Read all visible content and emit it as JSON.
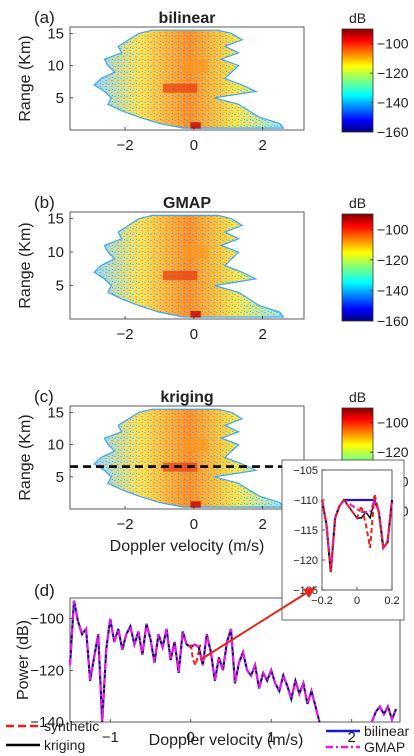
{
  "chart_data": [
    {
      "type": "heatmap",
      "panel": "(a)",
      "title": "bilinear",
      "ylabel": "Range (Km)",
      "xlabel": "",
      "xlim": [
        -3.6,
        3.2
      ],
      "ylim": [
        0,
        16
      ],
      "xticks": [
        -2,
        0,
        2
      ],
      "yticks": [
        5,
        10,
        15
      ],
      "colorbar": {
        "label": "dB",
        "range": [
          -160,
          -90
        ],
        "ticks": [
          -100,
          -120,
          -140,
          -160
        ]
      },
      "profile": [
        {
          "r": 0.3,
          "lo": -0.3,
          "hi": 2.6
        },
        {
          "r": 1,
          "lo": -1.0,
          "hi": 2.5
        },
        {
          "r": 2,
          "lo": -1.6,
          "hi": 1.9
        },
        {
          "r": 3,
          "lo": -2.1,
          "hi": 1.6
        },
        {
          "r": 4,
          "lo": -2.5,
          "hi": 1.3
        },
        {
          "r": 5,
          "lo": -2.4,
          "hi": 0.6
        },
        {
          "r": 6,
          "lo": -2.6,
          "hi": 1.8
        },
        {
          "r": 7,
          "lo": -2.9,
          "hi": 1.4
        },
        {
          "r": 8,
          "lo": -2.7,
          "hi": 0.9
        },
        {
          "r": 9,
          "lo": -2.3,
          "hi": 1.1
        },
        {
          "r": 10,
          "lo": -2.5,
          "hi": 1.3
        },
        {
          "r": 11,
          "lo": -2.6,
          "hi": 0.8
        },
        {
          "r": 12,
          "lo": -2.1,
          "hi": 1.3
        },
        {
          "r": 13,
          "lo": -2.2,
          "hi": 0.9
        },
        {
          "r": 14,
          "lo": -1.9,
          "hi": 1.4
        },
        {
          "r": 15,
          "lo": -1.6,
          "hi": 1.1
        },
        {
          "r": 15.5,
          "lo": -1.2,
          "hi": 0.7
        }
      ]
    },
    {
      "type": "heatmap",
      "panel": "(b)",
      "title": "GMAP",
      "ylabel": "Range (Km)",
      "xlabel": "",
      "xlim": [
        -3.6,
        3.2
      ],
      "ylim": [
        0,
        16
      ],
      "xticks": [
        -2,
        0,
        2
      ],
      "yticks": [
        5,
        10,
        15
      ],
      "colorbar": {
        "label": "dB",
        "range": [
          -160,
          -90
        ],
        "ticks": [
          -100,
          -120,
          -140,
          -160
        ]
      },
      "profile": [
        {
          "r": 0.3,
          "lo": -0.3,
          "hi": 2.6
        },
        {
          "r": 1,
          "lo": -1.0,
          "hi": 2.5
        },
        {
          "r": 2,
          "lo": -1.6,
          "hi": 1.9
        },
        {
          "r": 3,
          "lo": -2.1,
          "hi": 1.6
        },
        {
          "r": 4,
          "lo": -2.5,
          "hi": 1.3
        },
        {
          "r": 5,
          "lo": -2.4,
          "hi": 0.6
        },
        {
          "r": 6,
          "lo": -2.6,
          "hi": 1.8
        },
        {
          "r": 7,
          "lo": -2.9,
          "hi": 1.4
        },
        {
          "r": 8,
          "lo": -2.7,
          "hi": 0.9
        },
        {
          "r": 9,
          "lo": -2.3,
          "hi": 1.1
        },
        {
          "r": 10,
          "lo": -2.5,
          "hi": 1.3
        },
        {
          "r": 11,
          "lo": -2.6,
          "hi": 0.8
        },
        {
          "r": 12,
          "lo": -2.1,
          "hi": 1.3
        },
        {
          "r": 13,
          "lo": -2.2,
          "hi": 0.9
        },
        {
          "r": 14,
          "lo": -1.9,
          "hi": 1.4
        },
        {
          "r": 15,
          "lo": -1.6,
          "hi": 1.1
        },
        {
          "r": 15.5,
          "lo": -1.2,
          "hi": 0.7
        }
      ]
    },
    {
      "type": "heatmap",
      "panel": "(c)",
      "title": "kriging",
      "ylabel": "Range (Km)",
      "xlabel": "Doppler velocity (m/s)",
      "xlim": [
        -3.6,
        3.2
      ],
      "ylim": [
        0,
        16
      ],
      "xticks": [
        -2,
        0,
        2
      ],
      "yticks": [
        5,
        10,
        15
      ],
      "colorbar": {
        "label": "dB",
        "range": [
          -160,
          -90
        ],
        "ticks": [
          -100,
          -120,
          -140,
          -160
        ]
      },
      "cut_line_range_km": 6.6,
      "profile": [
        {
          "r": 0.3,
          "lo": -0.3,
          "hi": 2.6
        },
        {
          "r": 1,
          "lo": -1.0,
          "hi": 2.5
        },
        {
          "r": 2,
          "lo": -1.6,
          "hi": 1.9
        },
        {
          "r": 3,
          "lo": -2.1,
          "hi": 1.6
        },
        {
          "r": 4,
          "lo": -2.5,
          "hi": 1.3
        },
        {
          "r": 5,
          "lo": -2.4,
          "hi": 0.6
        },
        {
          "r": 6,
          "lo": -2.6,
          "hi": 1.8
        },
        {
          "r": 7,
          "lo": -2.9,
          "hi": 1.4
        },
        {
          "r": 8,
          "lo": -2.7,
          "hi": 0.9
        },
        {
          "r": 9,
          "lo": -2.3,
          "hi": 1.1
        },
        {
          "r": 10,
          "lo": -2.5,
          "hi": 1.3
        },
        {
          "r": 11,
          "lo": -2.6,
          "hi": 0.8
        },
        {
          "r": 12,
          "lo": -2.1,
          "hi": 1.3
        },
        {
          "r": 13,
          "lo": -2.2,
          "hi": 0.9
        },
        {
          "r": 14,
          "lo": -1.9,
          "hi": 1.4
        },
        {
          "r": 15,
          "lo": -1.6,
          "hi": 1.1
        },
        {
          "r": 15.5,
          "lo": -1.2,
          "hi": 0.7
        }
      ]
    },
    {
      "type": "line",
      "panel": "(d)",
      "title": "",
      "xlabel": "Doppler velocity (m/s)",
      "ylabel": "Power (dB)",
      "xlim": [
        -1.5,
        2.6
      ],
      "ylim": [
        -140,
        -92
      ],
      "xticks": [
        -1,
        0,
        1,
        2
      ],
      "yticks": [
        -100,
        -120,
        -140
      ],
      "legend": [
        {
          "name": "synthetic",
          "color": "#e8211b",
          "style": "dashed"
        },
        {
          "name": "kriging",
          "color": "#000000",
          "style": "solid"
        },
        {
          "name": "bilinear",
          "color": "#1c16d6",
          "style": "solid"
        },
        {
          "name": "GMAP",
          "color": "#e619e6",
          "style": "dashdot"
        }
      ],
      "series": [
        {
          "x": [
            -1.5,
            -1.45,
            -1.4,
            -1.35,
            -1.3,
            -1.25,
            -1.2,
            -1.15,
            -1.1,
            -1.05,
            -1.0,
            -0.95,
            -0.9,
            -0.85,
            -0.8,
            -0.75,
            -0.7,
            -0.65,
            -0.6,
            -0.55,
            -0.5,
            -0.45,
            -0.4,
            -0.35,
            -0.3,
            -0.25,
            -0.2,
            -0.15,
            -0.1,
            -0.05,
            0.0,
            0.05,
            0.1,
            0.15,
            0.2,
            0.25,
            0.3,
            0.35,
            0.4,
            0.45,
            0.5,
            0.55,
            0.6,
            0.65,
            0.7,
            0.75,
            0.8,
            0.85,
            0.9,
            0.95,
            1.0,
            1.05,
            1.1,
            1.15,
            1.2,
            1.25,
            1.3,
            1.35,
            1.4,
            1.45,
            1.5,
            1.55,
            1.6
          ],
          "y": [
            -118,
            -93,
            -101,
            -106,
            -104,
            -124,
            -115,
            -106,
            -140,
            -112,
            -100,
            -109,
            -104,
            -112,
            -106,
            -103,
            -110,
            -105,
            -114,
            -102,
            -108,
            -117,
            -106,
            -111,
            -104,
            -116,
            -109,
            -121,
            -105,
            -110,
            -111,
            -110,
            -111,
            -118,
            -106,
            -113,
            -124,
            -115,
            -120,
            -109,
            -104,
            -125,
            -117,
            -113,
            -120,
            -122,
            -118,
            -127,
            -121,
            -124,
            -120,
            -125,
            -128,
            -122,
            -126,
            -131,
            -124,
            -129,
            -125,
            -133,
            -128,
            -134,
            -140
          ]
        },
        {
          "x": [
            2.25,
            2.3,
            2.35,
            2.4,
            2.45,
            2.5,
            2.55
          ],
          "y": [
            -140,
            -136,
            -134,
            -137,
            -134,
            -139,
            -135
          ]
        }
      ],
      "inset": {
        "xlim": [
          -0.2,
          0.2
        ],
        "ylim": [
          -125,
          -105
        ],
        "xticks": [
          -0.2,
          0,
          0.2
        ],
        "yticks": [
          -105,
          -110,
          -115,
          -120,
          -125
        ],
        "x": [
          -0.2,
          -0.175,
          -0.15,
          -0.125,
          -0.1,
          -0.075,
          -0.05,
          -0.025,
          0.0,
          0.025,
          0.05,
          0.075,
          0.1,
          0.125,
          0.15,
          0.175,
          0.2
        ],
        "synthetic": [
          -110,
          -114,
          -122,
          -113,
          -111,
          -110,
          -111,
          -112,
          -113,
          -111,
          -114,
          -118,
          -109,
          -112,
          -118,
          -117,
          -110
        ],
        "kriging": [
          -110,
          -114,
          -122,
          -113,
          -111,
          -110,
          -111,
          -112,
          -113,
          -113,
          -112,
          -113,
          -110,
          -112,
          -118,
          -117,
          -110
        ],
        "bilinear": [
          -110,
          -114,
          -122,
          -113,
          -111,
          -110,
          -110,
          -110,
          -110,
          -110,
          -110,
          -110,
          -110,
          -112,
          -118,
          -117,
          -110
        ],
        "gmap": [
          -110,
          -114,
          -122,
          -113,
          -111,
          -110,
          -110.5,
          -111,
          -111.5,
          -112,
          -112,
          -112,
          -110,
          -112,
          -118,
          -117,
          -110
        ]
      }
    }
  ]
}
